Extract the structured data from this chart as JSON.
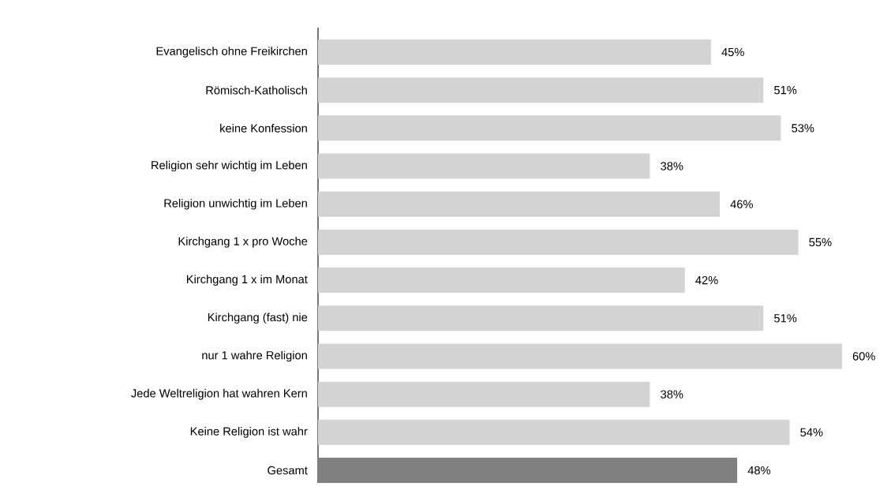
{
  "chart_data": {
    "type": "bar",
    "orientation": "horizontal",
    "categories": [
      "Evangelisch ohne Freikirchen",
      "Römisch-Katholisch",
      "keine Konfession",
      "Religion sehr wichtig im Leben",
      "Religion unwichtig im Leben",
      "Kirchgang 1 x pro Woche",
      "Kirchgang 1 x im Monat",
      "Kirchgang (fast) nie",
      "nur 1 wahre Religion",
      "Jede Weltreligion hat wahren Kern",
      "Keine Religion ist wahr",
      "Gesamt"
    ],
    "values": [
      45,
      51,
      53,
      38,
      46,
      55,
      42,
      51,
      60,
      38,
      54,
      48
    ],
    "value_labels": [
      "45%",
      "51%",
      "53%",
      "38%",
      "46%",
      "55%",
      "42%",
      "51%",
      "60%",
      "38%",
      "54%",
      "48%"
    ],
    "colors": [
      "#d3d3d3",
      "#d3d3d3",
      "#d3d3d3",
      "#d3d3d3",
      "#d3d3d3",
      "#d3d3d3",
      "#d3d3d3",
      "#d3d3d3",
      "#d3d3d3",
      "#d3d3d3",
      "#d3d3d3",
      "#808080"
    ]
  }
}
